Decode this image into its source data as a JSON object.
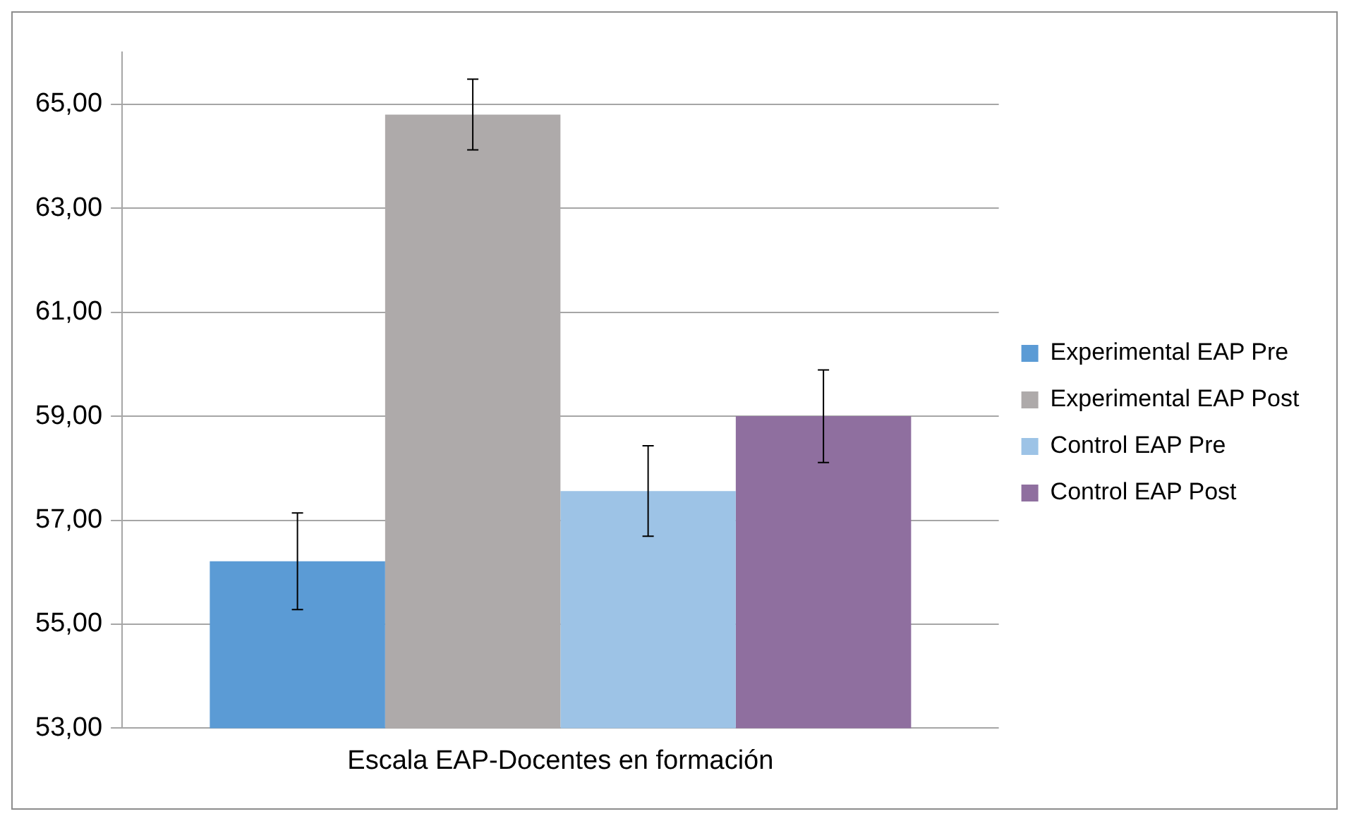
{
  "chart_data": {
    "type": "bar",
    "categories": [
      "Escala EAP-Docentes en formación"
    ],
    "series": [
      {
        "name": "Experimental EAP Pre",
        "color": "#5b9bd5",
        "values": [
          56.21
        ],
        "errors": [
          0.93
        ]
      },
      {
        "name": "Experimental EAP Post",
        "color": "#aeaaaa",
        "values": [
          64.8
        ],
        "errors": [
          0.68
        ]
      },
      {
        "name": "Control EAP Pre",
        "color": "#9dc3e6",
        "values": [
          57.56
        ],
        "errors": [
          0.87
        ]
      },
      {
        "name": "Control EAP Post",
        "color": "#8f6f9f",
        "values": [
          59.0
        ],
        "errors": [
          0.89
        ]
      }
    ],
    "ylim": [
      53,
      66
    ],
    "yticks": [
      {
        "value": 53,
        "label": "53,00"
      },
      {
        "value": 55,
        "label": "55,00"
      },
      {
        "value": 57,
        "label": "57,00"
      },
      {
        "value": 59,
        "label": "59,00"
      },
      {
        "value": 61,
        "label": "61,00"
      },
      {
        "value": 63,
        "label": "63,00"
      },
      {
        "value": 65,
        "label": "65,00"
      }
    ],
    "grid": "y",
    "legend": "right"
  }
}
